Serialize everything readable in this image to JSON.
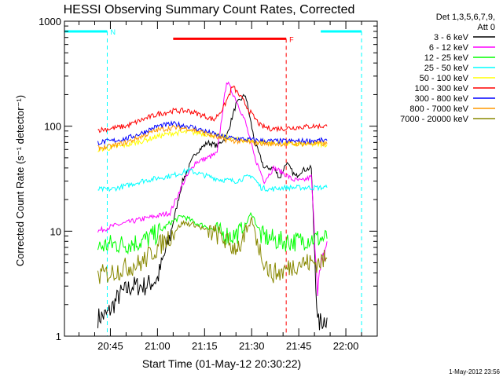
{
  "chart_data": {
    "type": "line",
    "title": "HESSI Observing Summary Count Rates, Corrected",
    "xlabel": "Start Time (01-May-12 20:30:22)",
    "ylabel": "Corrected Count Rate (s⁻¹ detector⁻¹)",
    "y_scale": "log",
    "ylim": [
      1,
      1000
    ],
    "xlim": [
      "20:30:22",
      "22:10:00"
    ],
    "x_ticks": [
      "20:45",
      "21:00",
      "21:15",
      "21:30",
      "21:45",
      "22:00"
    ],
    "y_ticks": [
      "1",
      "10",
      "100",
      "1000"
    ],
    "legend_position": "top-right, outside plot",
    "legend_header": [
      "Det 1,3,5,6,7,9,",
      "Att 0"
    ],
    "timestamp": "1-May-2012 23:56",
    "series": [
      {
        "name": "3 - 6 keV",
        "color": "#000000",
        "x": [
          "20:41",
          "20:44",
          "20:48",
          "20:52",
          "20:56",
          "21:00",
          "21:04",
          "21:08",
          "21:12",
          "21:16",
          "21:19",
          "21:22",
          "21:25",
          "21:28",
          "21:31",
          "21:34",
          "21:37",
          "21:39",
          "21:41",
          "21:44",
          "21:46",
          "21:49",
          "21:51",
          "21:54"
        ],
        "y": [
          1.5,
          1.6,
          2.5,
          3,
          3,
          3.5,
          9,
          30,
          55,
          70,
          65,
          80,
          160,
          200,
          70,
          40,
          40,
          32,
          45,
          33,
          38,
          40,
          1.3,
          1.5
        ]
      },
      {
        "name": "6 - 12 keV",
        "color": "#ff00ff",
        "x": [
          "20:41",
          "20:45",
          "20:50",
          "20:55",
          "21:00",
          "21:04",
          "21:08",
          "21:12",
          "21:16",
          "21:19",
          "21:22",
          "21:25",
          "21:28",
          "21:31",
          "21:34",
          "21:37",
          "21:40",
          "21:43",
          "21:46",
          "21:49",
          "21:51",
          "21:54"
        ],
        "y": [
          10,
          11,
          12,
          13,
          14,
          15,
          28,
          45,
          50,
          55,
          270,
          180,
          110,
          50,
          30,
          40,
          36,
          31,
          30,
          33,
          3,
          8
        ]
      },
      {
        "name": "12 - 25 keV",
        "color": "#00ff00",
        "x": [
          "20:41",
          "20:45",
          "20:50",
          "20:55",
          "21:00",
          "21:04",
          "21:08",
          "21:12",
          "21:16",
          "21:20",
          "21:24",
          "21:27",
          "21:30",
          "21:33",
          "21:36",
          "21:39",
          "21:42",
          "21:45",
          "21:48",
          "21:51",
          "21:54"
        ],
        "y": [
          7,
          7.5,
          7.5,
          8,
          9.5,
          12,
          14,
          12,
          11,
          9.5,
          9,
          10,
          15,
          9,
          8.5,
          8,
          8,
          8,
          8.5,
          8.5,
          8.5
        ]
      },
      {
        "name": "25 - 50 keV",
        "color": "#00ffff",
        "x": [
          "20:41",
          "20:45",
          "20:50",
          "20:55",
          "21:00",
          "21:05",
          "21:10",
          "21:15",
          "21:20",
          "21:25",
          "21:30",
          "21:33",
          "21:36",
          "21:40",
          "21:45",
          "21:50",
          "21:54"
        ],
        "y": [
          25,
          25,
          27,
          30,
          32,
          34,
          38,
          34,
          31,
          30,
          34,
          26,
          25,
          26,
          26,
          26,
          26
        ]
      },
      {
        "name": "50 - 100 keV",
        "color": "#ffff00",
        "x": [
          "20:41",
          "20:45",
          "20:50",
          "20:55",
          "21:00",
          "21:05",
          "21:10",
          "21:15",
          "21:20",
          "21:25",
          "21:30",
          "21:35",
          "21:40",
          "21:45",
          "21:50",
          "21:54"
        ],
        "y": [
          60,
          62,
          66,
          72,
          80,
          86,
          88,
          85,
          80,
          75,
          72,
          70,
          68,
          67,
          67,
          67
        ]
      },
      {
        "name": "100 - 300 keV",
        "color": "#ff0000",
        "x": [
          "20:41",
          "20:45",
          "20:50",
          "20:55",
          "21:00",
          "21:05",
          "21:10",
          "21:15",
          "21:18",
          "21:21",
          "21:24",
          "21:27",
          "21:30",
          "21:33",
          "21:36",
          "21:40",
          "21:45",
          "21:50",
          "21:54"
        ],
        "y": [
          92,
          95,
          100,
          115,
          130,
          140,
          140,
          125,
          115,
          150,
          240,
          180,
          130,
          100,
          95,
          95,
          98,
          100,
          100
        ]
      },
      {
        "name": "300 - 800 keV",
        "color": "#0000ff",
        "x": [
          "20:41",
          "20:45",
          "20:50",
          "20:55",
          "21:00",
          "21:05",
          "21:10",
          "21:15",
          "21:20",
          "21:25",
          "21:30",
          "21:35",
          "21:40",
          "21:45",
          "21:50",
          "21:54"
        ],
        "y": [
          70,
          72,
          76,
          86,
          100,
          105,
          100,
          90,
          80,
          76,
          74,
          72,
          72,
          72,
          73,
          73
        ]
      },
      {
        "name": "800 - 7000 keV",
        "color": "#ff9900",
        "x": [
          "20:41",
          "20:45",
          "20:50",
          "20:55",
          "21:00",
          "21:05",
          "21:10",
          "21:15",
          "21:20",
          "21:25",
          "21:30",
          "21:35",
          "21:40",
          "21:45",
          "21:50",
          "21:54"
        ],
        "y": [
          62,
          64,
          70,
          80,
          92,
          97,
          95,
          86,
          76,
          72,
          70,
          68,
          68,
          68,
          68,
          68
        ]
      },
      {
        "name": "7000 - 20000 keV",
        "color": "#888800",
        "x": [
          "20:41",
          "20:45",
          "20:50",
          "20:55",
          "21:00",
          "21:04",
          "21:08",
          "21:12",
          "21:16",
          "21:20",
          "21:24",
          "21:27",
          "21:30",
          "21:33",
          "21:36",
          "21:39",
          "21:42",
          "21:45",
          "21:48",
          "21:51",
          "21:54"
        ],
        "y": [
          3.8,
          4,
          4.5,
          5,
          7,
          9,
          12,
          11.5,
          10,
          9,
          7,
          7.5,
          13,
          6,
          4,
          4,
          4.5,
          5,
          5,
          5,
          5.5
        ]
      }
    ],
    "annotations": [
      {
        "label": "N",
        "color": "#00ffff",
        "x_start": "20:30:22",
        "x_end": "20:44:00",
        "level": 800
      },
      {
        "label": "",
        "color": "#00ffff",
        "x_start": "21:52:00",
        "x_end": "22:05:00",
        "level": 800
      },
      {
        "label": "F",
        "color": "#ff0000",
        "x_start": "21:05:00",
        "x_end": "21:41:00",
        "level": 680
      }
    ]
  }
}
